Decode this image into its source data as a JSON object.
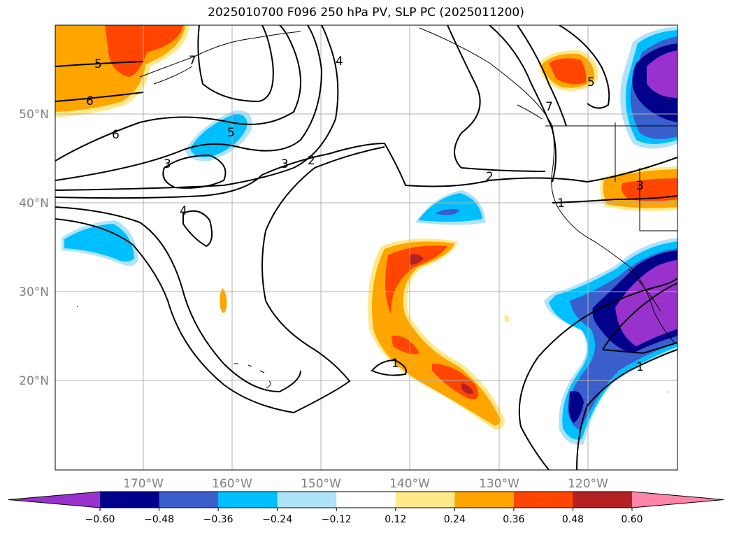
{
  "title": "2025010700 F096 250 hPa PV, SLP PC (2025011200)",
  "lat_labels": [
    "50°N",
    "40°N",
    "30°N",
    "20°N"
  ],
  "lon_labels": [
    "170°W",
    "160°W",
    "150°W",
    "140°W",
    "130°W",
    "120°W"
  ],
  "colorbar": {
    "ticks": [
      "−0.60",
      "−0.48",
      "−0.36",
      "−0.24",
      "−0.12",
      "0.12",
      "0.24",
      "0.36",
      "0.48",
      "0.60"
    ],
    "colors": [
      "#9932cc",
      "#00008b",
      "#3a5fcd",
      "#00bfff",
      "#aee3fa",
      "#ffffff",
      "#ffe98a",
      "#ffa500",
      "#ff4500",
      "#b22222",
      "#ff85a8"
    ]
  },
  "contour_labels": [
    "5",
    "6",
    "6",
    "3",
    "5",
    "4",
    "3",
    "2",
    "4",
    "7",
    "2",
    "1",
    "3",
    "1",
    "1",
    "5",
    "7"
  ]
}
